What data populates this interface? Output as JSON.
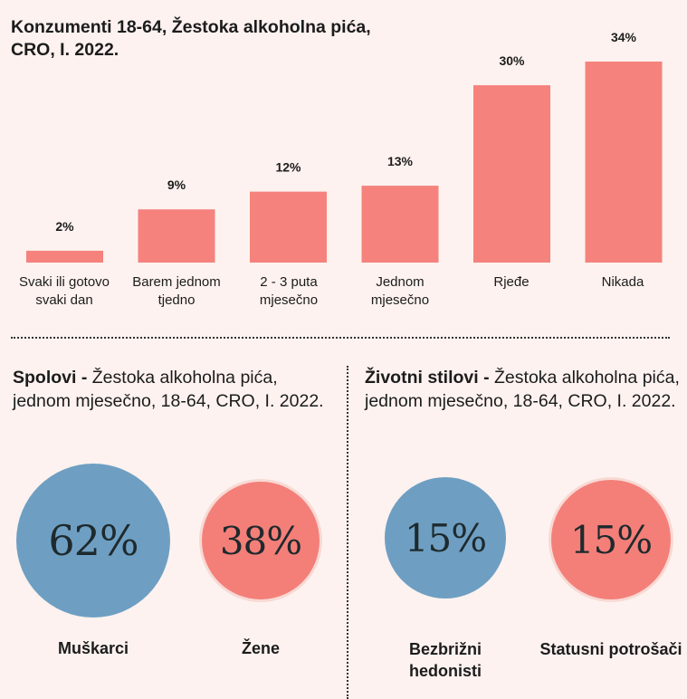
{
  "chart_data": [
    {
      "type": "bar",
      "title": "Konzumenti 18-64, Žestoka alkoholna pića, CRO, I. 2022.",
      "categories": [
        "Svaki ili gotovo svaki dan",
        "Barem jednom tjedno",
        "2 - 3 puta mjesečno",
        "Jednom mjesečno",
        "Rjeđe",
        "Nikada"
      ],
      "values": [
        2,
        9,
        12,
        13,
        30,
        34
      ],
      "value_labels": [
        "2%",
        "9%",
        "12%",
        "13%",
        "30%",
        "34%"
      ],
      "unit": "%",
      "ylim": [
        0,
        34
      ],
      "bar_color": "#f5827c",
      "grid": false,
      "legend": "none"
    },
    {
      "type": "bubble",
      "title_bold": "Spolovi -",
      "title_rest": "Žestoka alkoholna pića, jednom mjesečno, 18-64, CRO, I. 2022.",
      "categories": [
        "Muškarci",
        "Žene"
      ],
      "values": [
        62,
        38
      ],
      "value_labels": [
        "62%",
        "38%"
      ],
      "colors": [
        "#6e9fc3",
        "#f47f79"
      ]
    },
    {
      "type": "bubble",
      "title_bold": "Životni stilovi -",
      "title_rest": "Žestoka alkoholna pića, jednom mjesečno, 18-64, CRO, I. 2022.",
      "categories": [
        "Bezbrižni hedonisti",
        "Statusni potrošači"
      ],
      "values": [
        15,
        15
      ],
      "value_labels": [
        "15%",
        "15%"
      ],
      "colors": [
        "#6e9fc3",
        "#f47f79"
      ]
    }
  ]
}
